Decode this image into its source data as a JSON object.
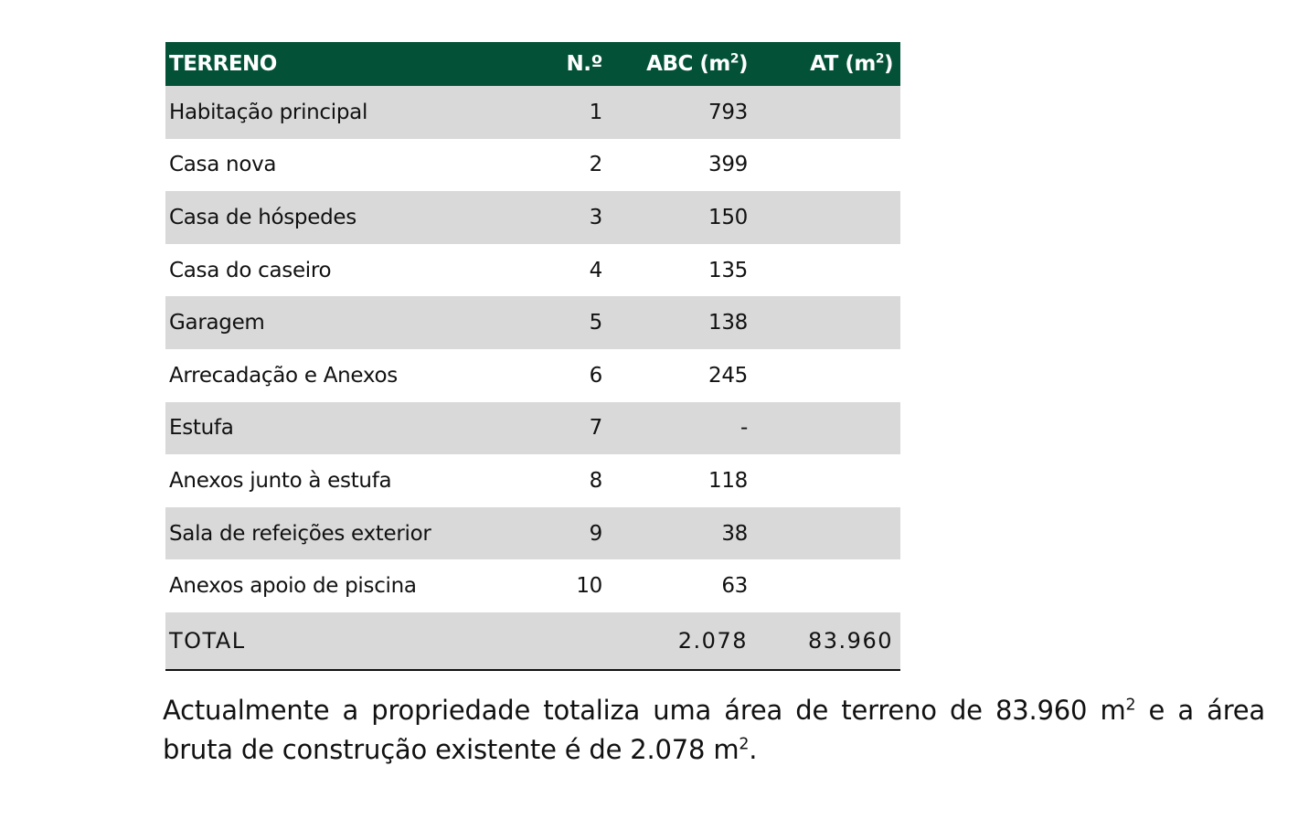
{
  "table": {
    "headers": {
      "name": "TERRENO",
      "number": "N.º",
      "abc_prefix": "ABC (m",
      "abc_sup": "2",
      "abc_suffix": ")",
      "at_prefix": "AT (m",
      "at_sup": "2",
      "at_suffix": ")"
    },
    "rows": [
      {
        "name": "Habitação principal",
        "number": "1",
        "abc": "793",
        "at": ""
      },
      {
        "name": "Casa nova",
        "number": "2",
        "abc": "399",
        "at": ""
      },
      {
        "name": "Casa de hóspedes",
        "number": "3",
        "abc": "150",
        "at": ""
      },
      {
        "name": "Casa do caseiro",
        "number": "4",
        "abc": "135",
        "at": ""
      },
      {
        "name": "Garagem",
        "number": "5",
        "abc": "138",
        "at": ""
      },
      {
        "name": "Arrecadação e Anexos",
        "number": "6",
        "abc": "245",
        "at": ""
      },
      {
        "name": "Estufa",
        "number": "7",
        "abc": "-",
        "at": ""
      },
      {
        "name": "Anexos junto à estufa",
        "number": "8",
        "abc": "118",
        "at": ""
      },
      {
        "name": "Sala de refeições exterior",
        "number": "9",
        "abc": "38",
        "at": ""
      },
      {
        "name": "Anexos apoio de piscina",
        "number": "10",
        "abc": "63",
        "at": ""
      }
    ],
    "total": {
      "label": "TOTAL",
      "abc": "2.078",
      "at": "83.960"
    },
    "header_color": "#035237",
    "shade_color": "#d9d9d9"
  },
  "paragraph": {
    "part1": "Actualmente a propriedade totaliza uma área de terreno de 83.960 m",
    "sup1": "2",
    "part2": " e a área bruta de construção existente é de 2.078 m",
    "sup2": "2",
    "part3": "."
  }
}
